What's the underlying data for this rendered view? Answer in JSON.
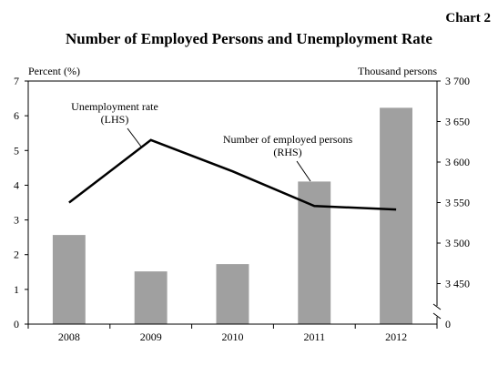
{
  "chart_label": "Chart 2",
  "chart_data": {
    "type": "bar+line",
    "title": "Number of Employed Persons and Unemployment Rate",
    "categories": [
      "2008",
      "2009",
      "2010",
      "2011",
      "2012"
    ],
    "left_axis": {
      "label": "Percent (%)",
      "min": 0,
      "max": 7,
      "step": 1,
      "ticks": [
        "0",
        "1",
        "2",
        "3",
        "4",
        "5",
        "6",
        "7"
      ]
    },
    "right_axis": {
      "label": "Thousand persons",
      "broken_axis": true,
      "baseline_label": "0",
      "min": 3400,
      "max": 3700,
      "step": 50,
      "ticks": [
        "3 450",
        "3 500",
        "3 550",
        "3 600",
        "3 650",
        "3 700"
      ]
    },
    "series": [
      {
        "name": "Number of employed persons",
        "axis_note": "(RHS)",
        "type": "bar",
        "axis": "right",
        "color": "#a0a0a0",
        "values": [
          3510,
          3465,
          3474,
          3576,
          3667
        ]
      },
      {
        "name": "Unemployment rate",
        "axis_note": "(LHS)",
        "type": "line",
        "axis": "left",
        "color": "#000000",
        "values": [
          3.5,
          5.3,
          4.4,
          3.4,
          3.3
        ]
      }
    ],
    "grid": false,
    "legend": "inline annotations"
  }
}
